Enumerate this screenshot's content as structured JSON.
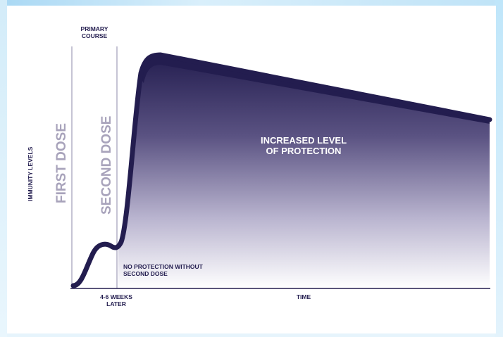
{
  "diagram": {
    "primary_course_line1": "PRIMARY",
    "primary_course_line2": "COURSE",
    "first_dose": "FIRST DOSE",
    "second_dose": "SECOND DOSE",
    "y_axis_label": "IMMUNITY LEVELS",
    "protection_line1": "INCREASED LEVEL",
    "protection_line2": "OF PROTECTION",
    "no_protection_line1": "NO PROTECTION WITHOUT",
    "no_protection_line2": "SECOND DOSE",
    "interval_line1": "4-6 WEEKS",
    "interval_line2": "LATER",
    "x_axis_label": "TIME"
  },
  "colors": {
    "curve": "#231d4f",
    "fill_top": "#231d4f",
    "dose_label": "#a8a3bb",
    "divider": "#8d88a8",
    "background_glow": "#cfe9f8"
  }
}
